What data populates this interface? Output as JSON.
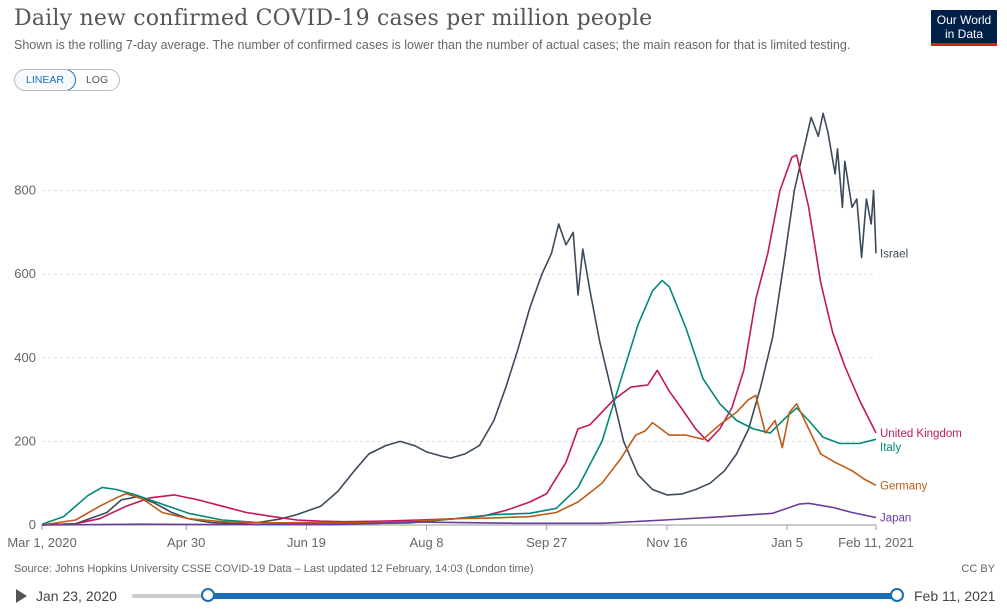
{
  "header": {
    "title": "Daily new confirmed COVID-19 cases per million people",
    "subtitle": "Shown is the rolling 7-day average. The number of confirmed cases is lower than the number of actual cases; the main reason for that is limited testing.",
    "logo_line1": "Our World",
    "logo_line2": "in Data",
    "logo_color": "#002147",
    "logo_accent": "#ce261e"
  },
  "scale_toggle": {
    "linear_label": "LINEAR",
    "log_label": "LOG",
    "active": "linear"
  },
  "footer": {
    "source": "Source: Johns Hopkins University CSSE COVID-19 Data – Last updated 12 February, 14:03 (London time)",
    "license": "CC BY"
  },
  "timeline": {
    "start_label": "Jan 23, 2020",
    "end_label": "Feb 11, 2021",
    "accent": "#1a6fb4"
  },
  "chart_data": {
    "type": "line",
    "x_axis": {
      "type": "date",
      "range": [
        "2020-03-01",
        "2021-02-11"
      ],
      "ticks": [
        {
          "date": "2020-03-01",
          "label": "Mar 1, 2020"
        },
        {
          "date": "2020-04-30",
          "label": "Apr 30"
        },
        {
          "date": "2020-06-19",
          "label": "Jun 19"
        },
        {
          "date": "2020-08-08",
          "label": "Aug 8"
        },
        {
          "date": "2020-09-27",
          "label": "Sep 27"
        },
        {
          "date": "2020-11-16",
          "label": "Nov 16"
        },
        {
          "date": "2021-01-05",
          "label": "Jan 5"
        },
        {
          "date": "2021-02-11",
          "label": "Feb 11, 2021"
        }
      ]
    },
    "y_axis": {
      "ylim": [
        0,
        1000
      ],
      "ticks": [
        0,
        200,
        400,
        600,
        800
      ]
    },
    "grid": "horizontal-dashed",
    "legend": "end-of-line labels",
    "series": [
      {
        "name": "Israel",
        "color": "#3b4a5c",
        "points": [
          [
            "2020-03-01",
            0
          ],
          [
            "2020-03-15",
            3
          ],
          [
            "2020-03-28",
            30
          ],
          [
            "2020-04-03",
            60
          ],
          [
            "2020-04-10",
            68
          ],
          [
            "2020-04-17",
            52
          ],
          [
            "2020-04-24",
            30
          ],
          [
            "2020-05-01",
            15
          ],
          [
            "2020-05-10",
            6
          ],
          [
            "2020-05-20",
            3
          ],
          [
            "2020-05-30",
            6
          ],
          [
            "2020-06-08",
            14
          ],
          [
            "2020-06-15",
            25
          ],
          [
            "2020-06-25",
            45
          ],
          [
            "2020-07-02",
            80
          ],
          [
            "2020-07-09",
            130
          ],
          [
            "2020-07-15",
            170
          ],
          [
            "2020-07-22",
            190
          ],
          [
            "2020-07-28",
            200
          ],
          [
            "2020-08-03",
            190
          ],
          [
            "2020-08-08",
            175
          ],
          [
            "2020-08-14",
            165
          ],
          [
            "2020-08-18",
            160
          ],
          [
            "2020-08-24",
            170
          ],
          [
            "2020-08-30",
            190
          ],
          [
            "2020-09-05",
            250
          ],
          [
            "2020-09-10",
            330
          ],
          [
            "2020-09-15",
            420
          ],
          [
            "2020-09-20",
            520
          ],
          [
            "2020-09-25",
            600
          ],
          [
            "2020-09-29",
            650
          ],
          [
            "2020-10-02",
            720
          ],
          [
            "2020-10-05",
            670
          ],
          [
            "2020-10-08",
            700
          ],
          [
            "2020-10-10",
            550
          ],
          [
            "2020-10-12",
            660
          ],
          [
            "2020-10-15",
            560
          ],
          [
            "2020-10-19",
            440
          ],
          [
            "2020-10-24",
            320
          ],
          [
            "2020-10-29",
            200
          ],
          [
            "2020-11-04",
            120
          ],
          [
            "2020-11-10",
            85
          ],
          [
            "2020-11-16",
            72
          ],
          [
            "2020-11-22",
            74
          ],
          [
            "2020-11-28",
            85
          ],
          [
            "2020-12-04",
            100
          ],
          [
            "2020-12-10",
            130
          ],
          [
            "2020-12-15",
            170
          ],
          [
            "2020-12-20",
            230
          ],
          [
            "2020-12-25",
            330
          ],
          [
            "2020-12-30",
            450
          ],
          [
            "2021-01-04",
            640
          ],
          [
            "2021-01-08",
            800
          ],
          [
            "2021-01-12",
            900
          ],
          [
            "2021-01-15",
            975
          ],
          [
            "2021-01-18",
            930
          ],
          [
            "2021-01-20",
            985
          ],
          [
            "2021-01-22",
            940
          ],
          [
            "2021-01-25",
            840
          ],
          [
            "2021-01-26",
            900
          ],
          [
            "2021-01-28",
            760
          ],
          [
            "2021-01-29",
            870
          ],
          [
            "2021-02-01",
            760
          ],
          [
            "2021-02-03",
            780
          ],
          [
            "2021-02-05",
            640
          ],
          [
            "2021-02-07",
            780
          ],
          [
            "2021-02-09",
            720
          ],
          [
            "2021-02-10",
            800
          ],
          [
            "2021-02-11",
            650
          ]
        ]
      },
      {
        "name": "United Kingdom",
        "color": "#c2185b",
        "points": [
          [
            "2020-03-01",
            0
          ],
          [
            "2020-03-15",
            3
          ],
          [
            "2020-03-25",
            15
          ],
          [
            "2020-04-05",
            45
          ],
          [
            "2020-04-15",
            65
          ],
          [
            "2020-04-25",
            72
          ],
          [
            "2020-05-05",
            60
          ],
          [
            "2020-05-15",
            45
          ],
          [
            "2020-05-25",
            30
          ],
          [
            "2020-06-05",
            20
          ],
          [
            "2020-06-15",
            12
          ],
          [
            "2020-06-25",
            9
          ],
          [
            "2020-07-05",
            8
          ],
          [
            "2020-07-20",
            9
          ],
          [
            "2020-08-05",
            12
          ],
          [
            "2020-08-20",
            15
          ],
          [
            "2020-09-01",
            22
          ],
          [
            "2020-09-10",
            35
          ],
          [
            "2020-09-20",
            55
          ],
          [
            "2020-09-27",
            75
          ],
          [
            "2020-10-05",
            150
          ],
          [
            "2020-10-10",
            230
          ],
          [
            "2020-10-15",
            240
          ],
          [
            "2020-10-20",
            270
          ],
          [
            "2020-10-25",
            300
          ],
          [
            "2020-11-01",
            330
          ],
          [
            "2020-11-08",
            335
          ],
          [
            "2020-11-12",
            370
          ],
          [
            "2020-11-17",
            320
          ],
          [
            "2020-11-22",
            280
          ],
          [
            "2020-11-28",
            230
          ],
          [
            "2020-12-03",
            200
          ],
          [
            "2020-12-08",
            230
          ],
          [
            "2020-12-13",
            280
          ],
          [
            "2020-12-18",
            370
          ],
          [
            "2020-12-23",
            540
          ],
          [
            "2020-12-28",
            650
          ],
          [
            "2021-01-02",
            800
          ],
          [
            "2021-01-07",
            880
          ],
          [
            "2021-01-09",
            885
          ],
          [
            "2021-01-14",
            760
          ],
          [
            "2021-01-19",
            580
          ],
          [
            "2021-01-24",
            460
          ],
          [
            "2021-01-29",
            380
          ],
          [
            "2021-02-04",
            300
          ],
          [
            "2021-02-11",
            220
          ]
        ]
      },
      {
        "name": "Italy",
        "color": "#00897b",
        "points": [
          [
            "2020-03-01",
            2
          ],
          [
            "2020-03-10",
            20
          ],
          [
            "2020-03-20",
            70
          ],
          [
            "2020-03-26",
            90
          ],
          [
            "2020-04-01",
            85
          ],
          [
            "2020-04-10",
            70
          ],
          [
            "2020-04-20",
            50
          ],
          [
            "2020-05-01",
            28
          ],
          [
            "2020-05-15",
            12
          ],
          [
            "2020-06-01",
            5
          ],
          [
            "2020-06-20",
            3
          ],
          [
            "2020-07-10",
            3
          ],
          [
            "2020-08-01",
            5
          ],
          [
            "2020-08-20",
            15
          ],
          [
            "2020-09-05",
            25
          ],
          [
            "2020-09-20",
            28
          ],
          [
            "2020-10-01",
            40
          ],
          [
            "2020-10-10",
            90
          ],
          [
            "2020-10-20",
            200
          ],
          [
            "2020-10-28",
            350
          ],
          [
            "2020-11-04",
            480
          ],
          [
            "2020-11-10",
            560
          ],
          [
            "2020-11-14",
            585
          ],
          [
            "2020-11-17",
            570
          ],
          [
            "2020-11-24",
            470
          ],
          [
            "2020-12-01",
            350
          ],
          [
            "2020-12-08",
            290
          ],
          [
            "2020-12-15",
            250
          ],
          [
            "2020-12-22",
            230
          ],
          [
            "2020-12-29",
            220
          ],
          [
            "2021-01-05",
            260
          ],
          [
            "2021-01-09",
            280
          ],
          [
            "2021-01-14",
            250
          ],
          [
            "2021-01-20",
            210
          ],
          [
            "2021-01-27",
            195
          ],
          [
            "2021-02-04",
            195
          ],
          [
            "2021-02-11",
            205
          ]
        ]
      },
      {
        "name": "Germany",
        "color": "#bf5b17",
        "points": [
          [
            "2020-03-01",
            0
          ],
          [
            "2020-03-15",
            12
          ],
          [
            "2020-03-25",
            45
          ],
          [
            "2020-04-01",
            65
          ],
          [
            "2020-04-05",
            75
          ],
          [
            "2020-04-12",
            62
          ],
          [
            "2020-04-20",
            30
          ],
          [
            "2020-05-01",
            15
          ],
          [
            "2020-05-15",
            8
          ],
          [
            "2020-06-01",
            5
          ],
          [
            "2020-06-20",
            6
          ],
          [
            "2020-07-10",
            5
          ],
          [
            "2020-08-01",
            8
          ],
          [
            "2020-08-20",
            15
          ],
          [
            "2020-09-05",
            17
          ],
          [
            "2020-09-20",
            20
          ],
          [
            "2020-10-01",
            30
          ],
          [
            "2020-10-10",
            55
          ],
          [
            "2020-10-20",
            100
          ],
          [
            "2020-10-28",
            160
          ],
          [
            "2020-11-03",
            215
          ],
          [
            "2020-11-07",
            225
          ],
          [
            "2020-11-10",
            245
          ],
          [
            "2020-11-17",
            215
          ],
          [
            "2020-11-24",
            215
          ],
          [
            "2020-12-01",
            205
          ],
          [
            "2020-12-08",
            240
          ],
          [
            "2020-12-15",
            270
          ],
          [
            "2020-12-20",
            300
          ],
          [
            "2020-12-23",
            310
          ],
          [
            "2020-12-27",
            220
          ],
          [
            "2020-12-31",
            250
          ],
          [
            "2021-01-03",
            185
          ],
          [
            "2021-01-06",
            270
          ],
          [
            "2021-01-09",
            290
          ],
          [
            "2021-01-14",
            230
          ],
          [
            "2021-01-19",
            170
          ],
          [
            "2021-01-25",
            150
          ],
          [
            "2021-02-01",
            130
          ],
          [
            "2021-02-06",
            110
          ],
          [
            "2021-02-11",
            95
          ]
        ]
      },
      {
        "name": "Japan",
        "color": "#6a3d9a",
        "points": [
          [
            "2020-03-01",
            0
          ],
          [
            "2020-04-10",
            2
          ],
          [
            "2020-05-10",
            1
          ],
          [
            "2020-07-01",
            1
          ],
          [
            "2020-08-05",
            7
          ],
          [
            "2020-09-15",
            4
          ],
          [
            "2020-10-20",
            4
          ],
          [
            "2020-11-15",
            12
          ],
          [
            "2020-12-10",
            20
          ],
          [
            "2020-12-30",
            28
          ],
          [
            "2021-01-10",
            50
          ],
          [
            "2021-01-14",
            52
          ],
          [
            "2021-01-24",
            42
          ],
          [
            "2021-02-01",
            30
          ],
          [
            "2021-02-11",
            18
          ]
        ]
      }
    ]
  }
}
